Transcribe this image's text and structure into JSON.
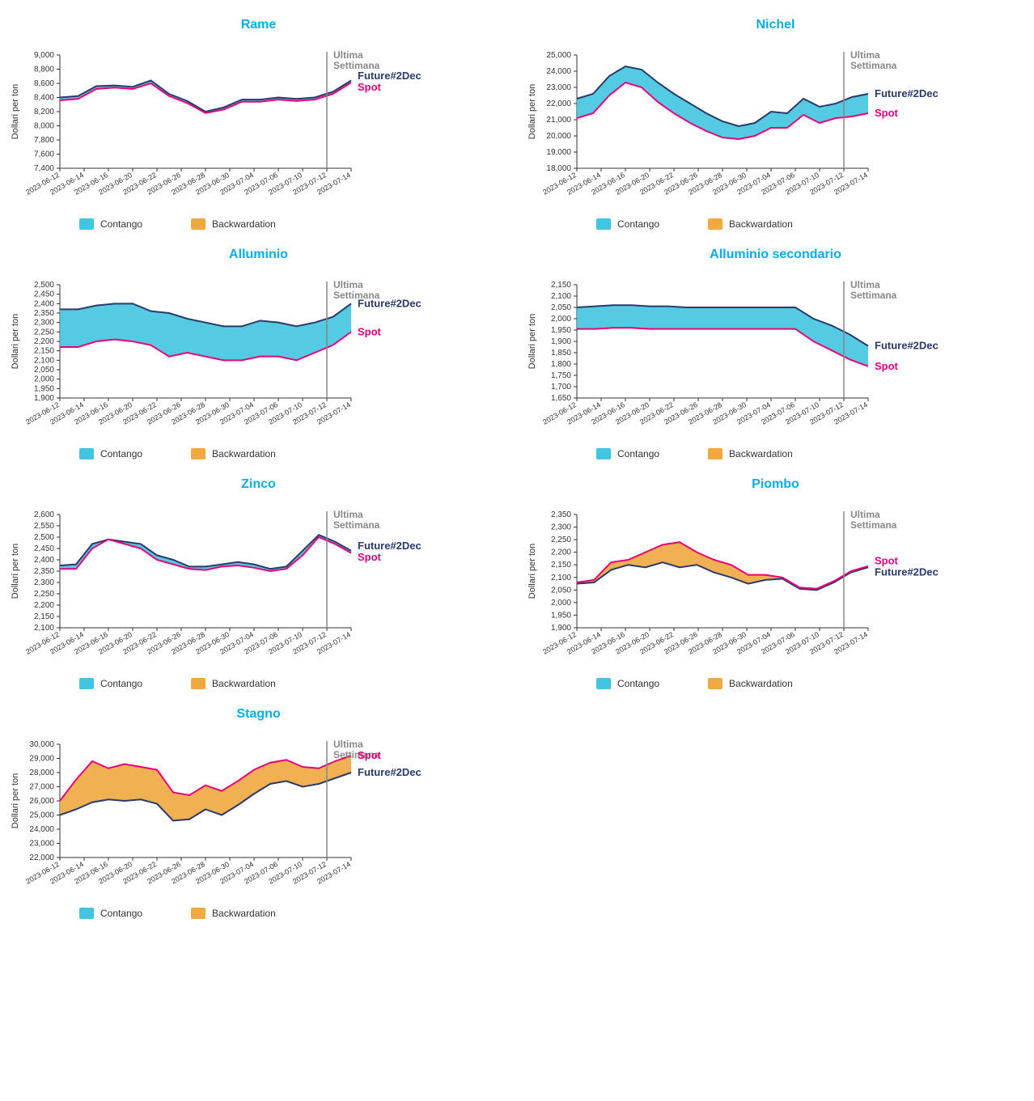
{
  "global": {
    "yaxis_label": "Dollari per ton",
    "annotation_label": "Ultima\nSettimana",
    "future_label": "Future#2Dec",
    "spot_label": "Spot",
    "legend_contango": "Contango",
    "legend_backwardation": "Backwardation",
    "dates": [
      "2023-06-12",
      "2023-06-14",
      "2023-06-16",
      "2023-06-20",
      "2023-06-22",
      "2023-06-26",
      "2023-06-28",
      "2023-06-30",
      "2023-07-04",
      "2023-07-06",
      "2023-07-10",
      "2023-07-12",
      "2023-07-14"
    ],
    "vline_index": 11.0,
    "colors": {
      "title": "#00aee6",
      "contango_fill": "#42c5e0",
      "backwardation_fill": "#f0a940",
      "future_line": "#2a3a6a",
      "spot_line": "#e6007a",
      "vline": "#888888",
      "ann_text": "#888888",
      "axis": "#333333"
    },
    "chart_inner_w": 360,
    "chart_inner_h": 140,
    "margin": {
      "l": 66,
      "r": 120,
      "t": 10,
      "b": 56
    }
  },
  "charts": [
    {
      "id": "rame",
      "title": "Rame",
      "ylim": [
        7400,
        9000
      ],
      "ytick_step": 200,
      "future": [
        8400,
        8420,
        8560,
        8570,
        8550,
        8640,
        8450,
        8350,
        8200,
        8260,
        8370,
        8370,
        8400,
        8380,
        8400,
        8480,
        8640
      ],
      "spot": [
        8360,
        8380,
        8520,
        8540,
        8520,
        8600,
        8420,
        8320,
        8180,
        8230,
        8340,
        8340,
        8370,
        8350,
        8370,
        8450,
        8610
      ],
      "label_order": [
        "future",
        "spot"
      ]
    },
    {
      "id": "nichel",
      "title": "Nichel",
      "ylim": [
        18000,
        25000
      ],
      "ytick_step": 1000,
      "future": [
        22300,
        22600,
        23700,
        24300,
        24100,
        23300,
        22600,
        22000,
        21400,
        20900,
        20600,
        20800,
        21500,
        21400,
        22300,
        21800,
        22000,
        22400,
        22600
      ],
      "spot": [
        21100,
        21400,
        22500,
        23300,
        23000,
        22100,
        21400,
        20800,
        20300,
        19900,
        19800,
        20000,
        20500,
        20500,
        21300,
        20800,
        21100,
        21200,
        21400
      ],
      "label_order": [
        "future",
        "spot"
      ]
    },
    {
      "id": "alluminio",
      "title": "Alluminio",
      "ylim": [
        1900,
        2500
      ],
      "ytick_step": 50,
      "future": [
        2370,
        2370,
        2390,
        2400,
        2400,
        2360,
        2350,
        2320,
        2300,
        2280,
        2280,
        2310,
        2300,
        2280,
        2300,
        2330,
        2400
      ],
      "spot": [
        2170,
        2170,
        2200,
        2210,
        2200,
        2180,
        2120,
        2140,
        2120,
        2100,
        2100,
        2120,
        2120,
        2100,
        2140,
        2180,
        2250
      ],
      "label_order": [
        "future",
        "spot"
      ]
    },
    {
      "id": "alluminio-secondario",
      "title": "Alluminio secondario",
      "ylim": [
        1650,
        2150
      ],
      "ytick_step": 50,
      "future": [
        2050,
        2055,
        2060,
        2060,
        2055,
        2055,
        2050,
        2050,
        2050,
        2050,
        2050,
        2050,
        2050,
        2000,
        1970,
        1930,
        1880
      ],
      "spot": [
        1955,
        1955,
        1960,
        1960,
        1955,
        1955,
        1955,
        1955,
        1955,
        1955,
        1955,
        1955,
        1955,
        1900,
        1860,
        1820,
        1790
      ],
      "label_order": [
        "future",
        "spot"
      ]
    },
    {
      "id": "zinco",
      "title": "Zinco",
      "ylim": [
        2100,
        2600
      ],
      "ytick_step": 50,
      "future": [
        2375,
        2380,
        2470,
        2490,
        2480,
        2470,
        2420,
        2400,
        2370,
        2370,
        2380,
        2390,
        2380,
        2360,
        2370,
        2440,
        2510,
        2480,
        2440
      ],
      "spot": [
        2360,
        2360,
        2450,
        2490,
        2470,
        2450,
        2400,
        2380,
        2360,
        2355,
        2370,
        2375,
        2365,
        2350,
        2360,
        2420,
        2500,
        2470,
        2430
      ],
      "label_order": [
        "future",
        "spot"
      ]
    },
    {
      "id": "piombo",
      "title": "Piombo",
      "ylim": [
        1900,
        2350
      ],
      "ytick_step": 50,
      "future": [
        2075,
        2080,
        2130,
        2150,
        2140,
        2160,
        2140,
        2150,
        2120,
        2100,
        2075,
        2090,
        2095,
        2055,
        2050,
        2080,
        2120,
        2140
      ],
      "spot": [
        2080,
        2090,
        2160,
        2170,
        2200,
        2230,
        2240,
        2200,
        2170,
        2150,
        2110,
        2110,
        2100,
        2060,
        2055,
        2085,
        2125,
        2145
      ],
      "label_order": [
        "future",
        "spot"
      ]
    },
    {
      "id": "stagno",
      "title": "Stagno",
      "ylim": [
        22000,
        30000
      ],
      "ytick_step": 1000,
      "future": [
        25000,
        25400,
        25900,
        26100,
        26000,
        26100,
        25800,
        24600,
        24700,
        25400,
        25000,
        25700,
        26500,
        27200,
        27400,
        27000,
        27200,
        27600,
        28000
      ],
      "spot": [
        26000,
        27500,
        28800,
        28300,
        28600,
        28400,
        28200,
        26600,
        26400,
        27100,
        26700,
        27400,
        28200,
        28700,
        28900,
        28400,
        28300,
        28800,
        29200
      ],
      "label_order": [
        "spot",
        "future"
      ]
    }
  ]
}
